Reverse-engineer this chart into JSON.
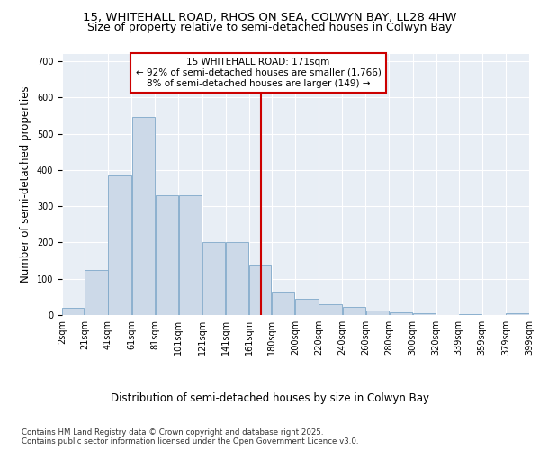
{
  "title_line1": "15, WHITEHALL ROAD, RHOS ON SEA, COLWYN BAY, LL28 4HW",
  "title_line2": "Size of property relative to semi-detached houses in Colwyn Bay",
  "xlabel": "Distribution of semi-detached houses by size in Colwyn Bay",
  "ylabel": "Number of semi-detached properties",
  "footnote": "Contains HM Land Registry data © Crown copyright and database right 2025.\nContains public sector information licensed under the Open Government Licence v3.0.",
  "bar_edges": [
    2,
    21,
    41,
    61,
    81,
    101,
    121,
    141,
    161,
    180,
    200,
    220,
    240,
    260,
    280,
    300,
    320,
    339,
    359,
    379,
    399
  ],
  "bar_heights": [
    20,
    125,
    385,
    545,
    330,
    330,
    200,
    200,
    140,
    65,
    45,
    30,
    22,
    12,
    8,
    5,
    0,
    3,
    0,
    5
  ],
  "bar_color": "#ccd9e8",
  "bar_edge_color": "#7fa8c9",
  "vline_x": 171,
  "vline_color": "#cc0000",
  "annotation_text": "15 WHITEHALL ROAD: 171sqm\n← 92% of semi-detached houses are smaller (1,766)\n8% of semi-detached houses are larger (149) →",
  "annotation_box_color": "#cc0000",
  "annotation_fill": "#ffffff",
  "ylim": [
    0,
    720
  ],
  "yticks": [
    0,
    100,
    200,
    300,
    400,
    500,
    600,
    700
  ],
  "tick_labels": [
    "2sqm",
    "21sqm",
    "41sqm",
    "61sqm",
    "81sqm",
    "101sqm",
    "121sqm",
    "141sqm",
    "161sqm",
    "180sqm",
    "200sqm",
    "220sqm",
    "240sqm",
    "260sqm",
    "280sqm",
    "300sqm",
    "320sqm",
    "339sqm",
    "359sqm",
    "379sqm",
    "399sqm"
  ],
  "bg_color": "#e8eef5",
  "fig_bg": "#ffffff",
  "grid_color": "#ffffff",
  "title_fontsize": 9.5,
  "subtitle_fontsize": 9,
  "axis_label_fontsize": 8.5,
  "tick_fontsize": 7,
  "annotation_fontsize": 7.5
}
